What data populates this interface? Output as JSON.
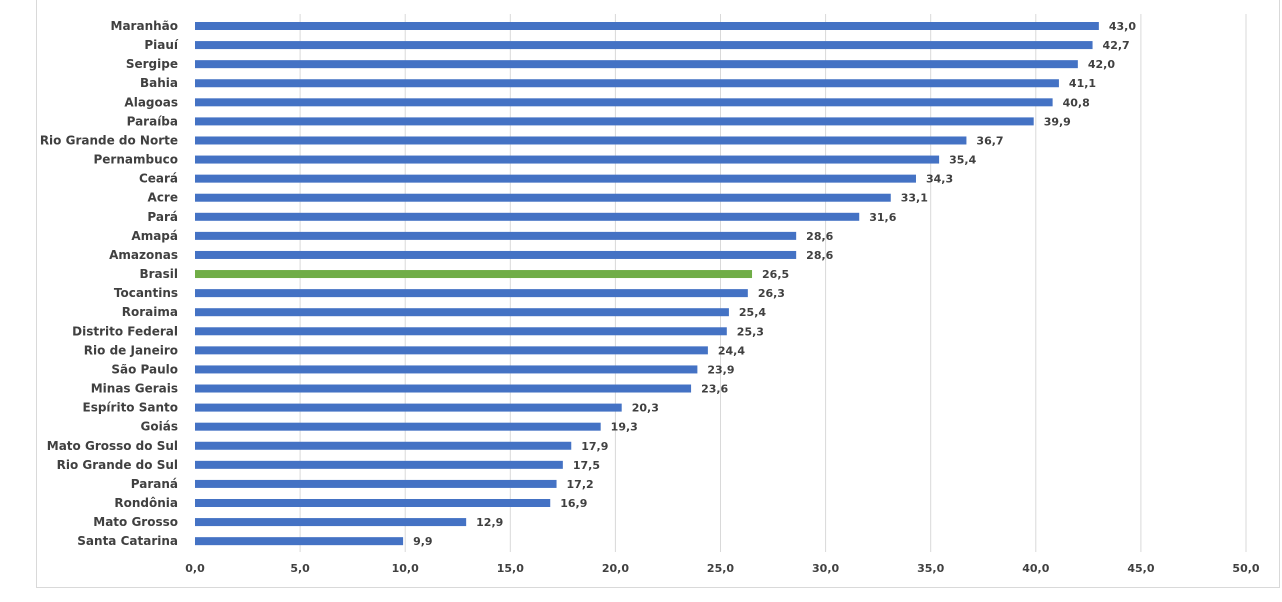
{
  "chart_data": {
    "type": "bar",
    "orientation": "horizontal",
    "categories": [
      "Maranhão",
      "Piauí",
      "Sergipe",
      "Bahia",
      "Alagoas",
      "Paraíba",
      "Rio Grande do Norte",
      "Pernambuco",
      "Ceará",
      "Acre",
      "Pará",
      "Amapá",
      "Amazonas",
      "Brasil",
      "Tocantins",
      "Roraima",
      "Distrito Federal",
      "Rio de Janeiro",
      "São Paulo",
      "Minas Gerais",
      "Espírito Santo",
      "Goiás",
      "Mato Grosso do Sul",
      "Rio Grande do Sul",
      "Paraná",
      "Rondônia",
      "Mato Grosso",
      "Santa Catarina"
    ],
    "values": [
      43.0,
      42.7,
      42.0,
      41.1,
      40.8,
      39.9,
      36.7,
      35.4,
      34.3,
      33.1,
      31.6,
      28.6,
      28.6,
      26.5,
      26.3,
      25.4,
      25.3,
      24.4,
      23.9,
      23.6,
      20.3,
      19.3,
      17.9,
      17.5,
      17.2,
      16.9,
      12.9,
      9.9
    ],
    "value_labels": [
      "43,0",
      "42,7",
      "42,0",
      "41,1",
      "40,8",
      "39,9",
      "36,7",
      "35,4",
      "34,3",
      "33,1",
      "31,6",
      "28,6",
      "28,6",
      "26,5",
      "26,3",
      "25,4",
      "25,3",
      "24,4",
      "23,9",
      "23,6",
      "20,3",
      "19,3",
      "17,9",
      "17,5",
      "17,2",
      "16,9",
      "12,9",
      "9,9"
    ],
    "highlight_category": "Brasil",
    "xlim": [
      0,
      50
    ],
    "ticks": [
      0,
      5,
      10,
      15,
      20,
      25,
      30,
      35,
      40,
      45,
      50
    ],
    "tick_labels": [
      "0,0",
      "5,0",
      "10,0",
      "15,0",
      "20,0",
      "25,0",
      "30,0",
      "35,0",
      "40,0",
      "45,0",
      "50,0"
    ],
    "title": "",
    "xlabel": "",
    "ylabel": "",
    "grid": "vertical",
    "legend": "none",
    "colors": {
      "bar": "#4472c4",
      "highlight": "#70ad47",
      "grid": "#d9d9d9",
      "text": "#404040"
    }
  }
}
